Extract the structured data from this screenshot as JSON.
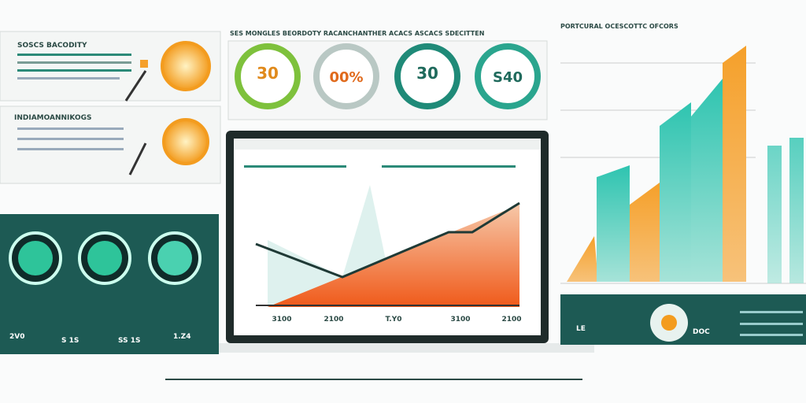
{
  "header": {
    "title": "SES MONGLES BEORDOTY RACANCHANTHER ACACS ASCACS SDECITTEN"
  },
  "top_left": {
    "title": "SOSCS BACODITY"
  },
  "mid_left": {
    "title": "INDIAMOANNIKOGS"
  },
  "gauges": [
    {
      "label": "30"
    },
    {
      "label": "00%"
    },
    {
      "label": "30"
    },
    {
      "label": "S40"
    }
  ],
  "laptop": {
    "x_labels": [
      "3100",
      "2100",
      "T.Y0",
      "3100",
      "2100"
    ]
  },
  "right_panel": {
    "title": "PORTCURAL OCESCOTTC OFCORS"
  },
  "bottom_left": {
    "labels": [
      "2V0",
      "S 1S",
      "SS 1S",
      "1.Z4"
    ]
  },
  "bottom_right": {
    "labels": [
      "LE",
      "DOC"
    ]
  }
}
